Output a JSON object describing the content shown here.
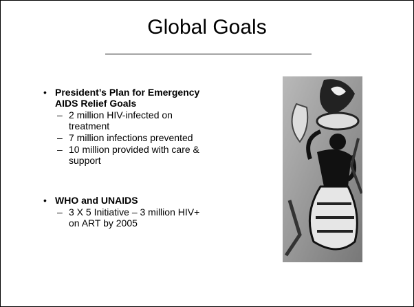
{
  "title": "Global Goals",
  "bullets": [
    {
      "text": "President’s Plan for Emergency AIDS Relief Goals",
      "sub": [
        "2 million HIV-infected on treatment",
        "7 million infections prevented",
        "10 million provided with care & support"
      ]
    },
    {
      "text": "WHO and UNAIDS",
      "sub": [
        "3 X 5 Initiative – 3 million HIV+ on ART by 2005"
      ]
    }
  ]
}
